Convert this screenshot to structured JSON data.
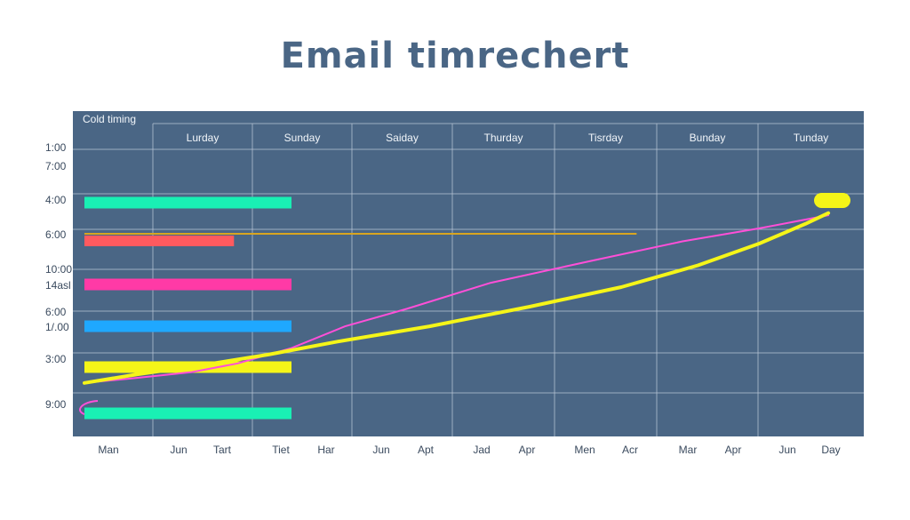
{
  "chart_data": {
    "type": "line",
    "title": "Email timrechert",
    "corner_label": "Cold timing",
    "column_headers": [
      "Lurday",
      "Sunday",
      "Saiday",
      "Thurday",
      "Tisrday",
      "Bunday",
      "Tunday"
    ],
    "y_tick_labels": [
      "1:00",
      "7:00",
      "4:00",
      "6:00",
      "10:00",
      "14asl",
      "6:00",
      "1/.00",
      "3:00",
      "9:00"
    ],
    "x_tick_labels": [
      "Man",
      "Jun",
      "Tart",
      "Tiet",
      "Har",
      "Jun",
      "Apt",
      "Jad",
      "Apr",
      "Men",
      "Acr",
      "Mar",
      "Apr",
      "Jun",
      "Day"
    ],
    "grid": true,
    "colors": {
      "title": "#4a6685",
      "plot_background": "#4a6685",
      "grid": "#b8c6d6"
    },
    "bars": [
      {
        "color": "#19f0b4",
        "start": 0,
        "end": 0.27
      },
      {
        "color": "#ff5a5f",
        "start": 0,
        "end": 0.195
      },
      {
        "color": "#ff3aa6",
        "start": 0,
        "end": 0.27
      },
      {
        "color": "#1fa8ff",
        "start": 0,
        "end": 0.27
      },
      {
        "color": "#f5f518",
        "start": 0,
        "end": 0.27
      },
      {
        "color": "#19f0b4",
        "start": 0,
        "end": 0.27
      }
    ],
    "reference_line": {
      "color": "#d9a520",
      "start": 0,
      "end": 0.72
    },
    "series": [
      {
        "color": "#ff4fd8",
        "x": [
          0,
          0.06,
          0.14,
          0.2,
          0.27,
          0.34,
          0.42,
          0.53,
          0.66,
          0.78,
          0.88,
          0.97
        ],
        "y": [
          0.16,
          0.18,
          0.21,
          0.25,
          0.32,
          0.42,
          0.5,
          0.62,
          0.72,
          0.81,
          0.87,
          0.93
        ]
      },
      {
        "color": "#f5f518",
        "x": [
          0,
          0.07,
          0.15,
          0.24,
          0.33,
          0.45,
          0.58,
          0.7,
          0.8,
          0.88,
          0.94,
          0.97
        ],
        "y": [
          0.16,
          0.2,
          0.24,
          0.29,
          0.35,
          0.42,
          0.51,
          0.6,
          0.7,
          0.8,
          0.89,
          0.94
        ]
      }
    ],
    "end_marker": {
      "color": "#f5f518"
    }
  }
}
